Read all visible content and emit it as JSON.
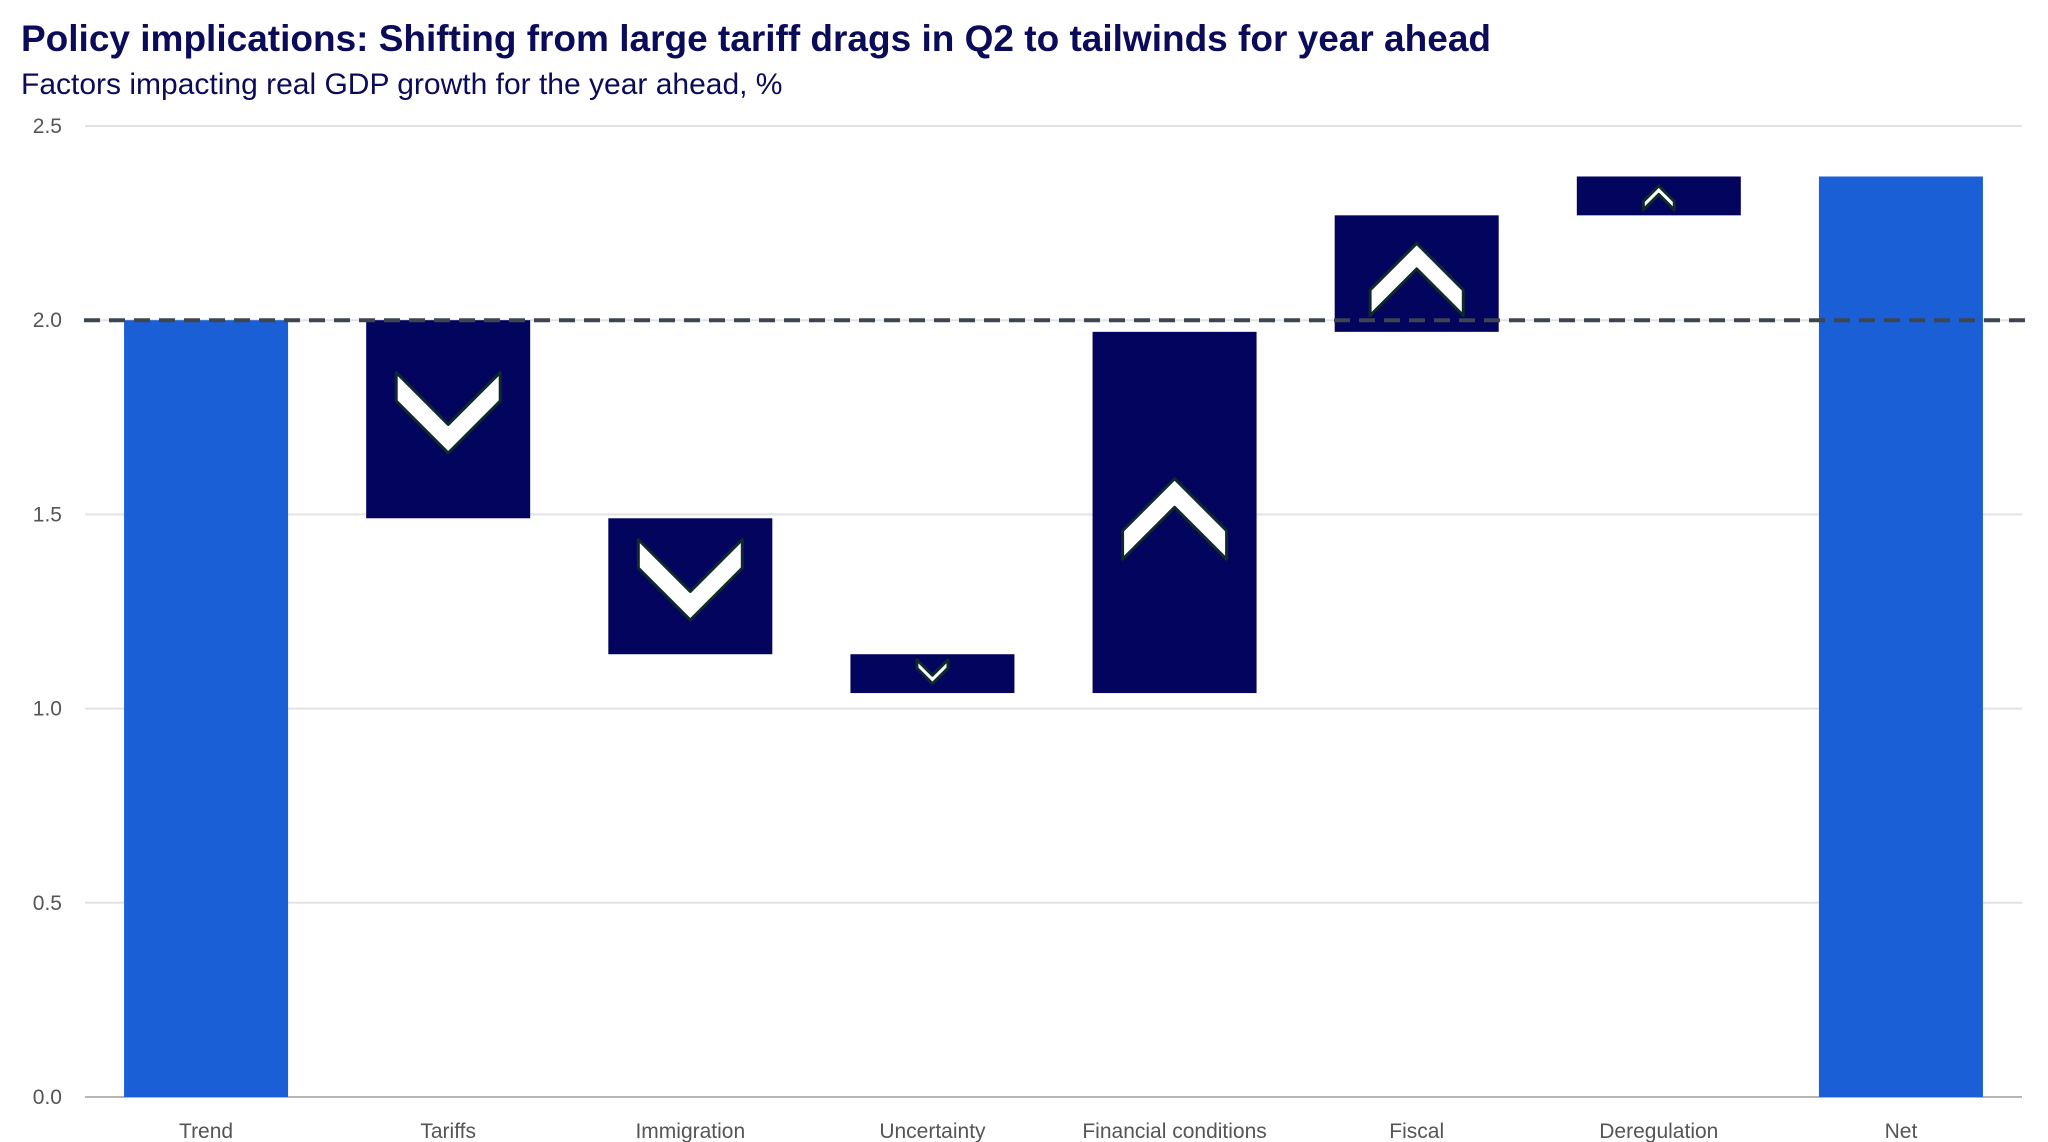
{
  "chart_data": {
    "type": "bar",
    "subtype": "waterfall",
    "title": "Policy implications: Shifting from large tariff drags in Q2 to tailwinds for year ahead",
    "subtitle": "Factors impacting real GDP growth for the year ahead, %",
    "categories": [
      "Trend",
      "Tariffs",
      "Immigration",
      "Uncertainty",
      "Financial conditions",
      "Fiscal",
      "Deregulation",
      "Net"
    ],
    "bars": [
      {
        "kind": "total",
        "start": 0,
        "end": 2.0,
        "direction": "none"
      },
      {
        "kind": "change",
        "start": 2.0,
        "end": 1.49,
        "direction": "down"
      },
      {
        "kind": "change",
        "start": 1.49,
        "end": 1.14,
        "direction": "down"
      },
      {
        "kind": "change",
        "start": 1.14,
        "end": 1.04,
        "direction": "down"
      },
      {
        "kind": "change",
        "start": 1.04,
        "end": 1.97,
        "direction": "up"
      },
      {
        "kind": "change",
        "start": 1.97,
        "end": 2.27,
        "direction": "up"
      },
      {
        "kind": "change",
        "start": 2.27,
        "end": 2.37,
        "direction": "up"
      },
      {
        "kind": "total",
        "start": 0,
        "end": 2.37,
        "direction": "none"
      }
    ],
    "yticks": [
      "0.0",
      "0.5",
      "1.0",
      "1.5",
      "2.0",
      "2.5"
    ],
    "ylim": [
      0,
      2.5
    ],
    "reference_line": 2.0,
    "grid": true,
    "colors": {
      "total": "#1a5fd6",
      "change": "#03045e",
      "arrow_fill": "#ffffff",
      "arrow_stroke": "#0e2a2a",
      "reference_line": "#3d4550",
      "grid": "#e3e3e3",
      "axis": "#b5b5b5"
    }
  }
}
